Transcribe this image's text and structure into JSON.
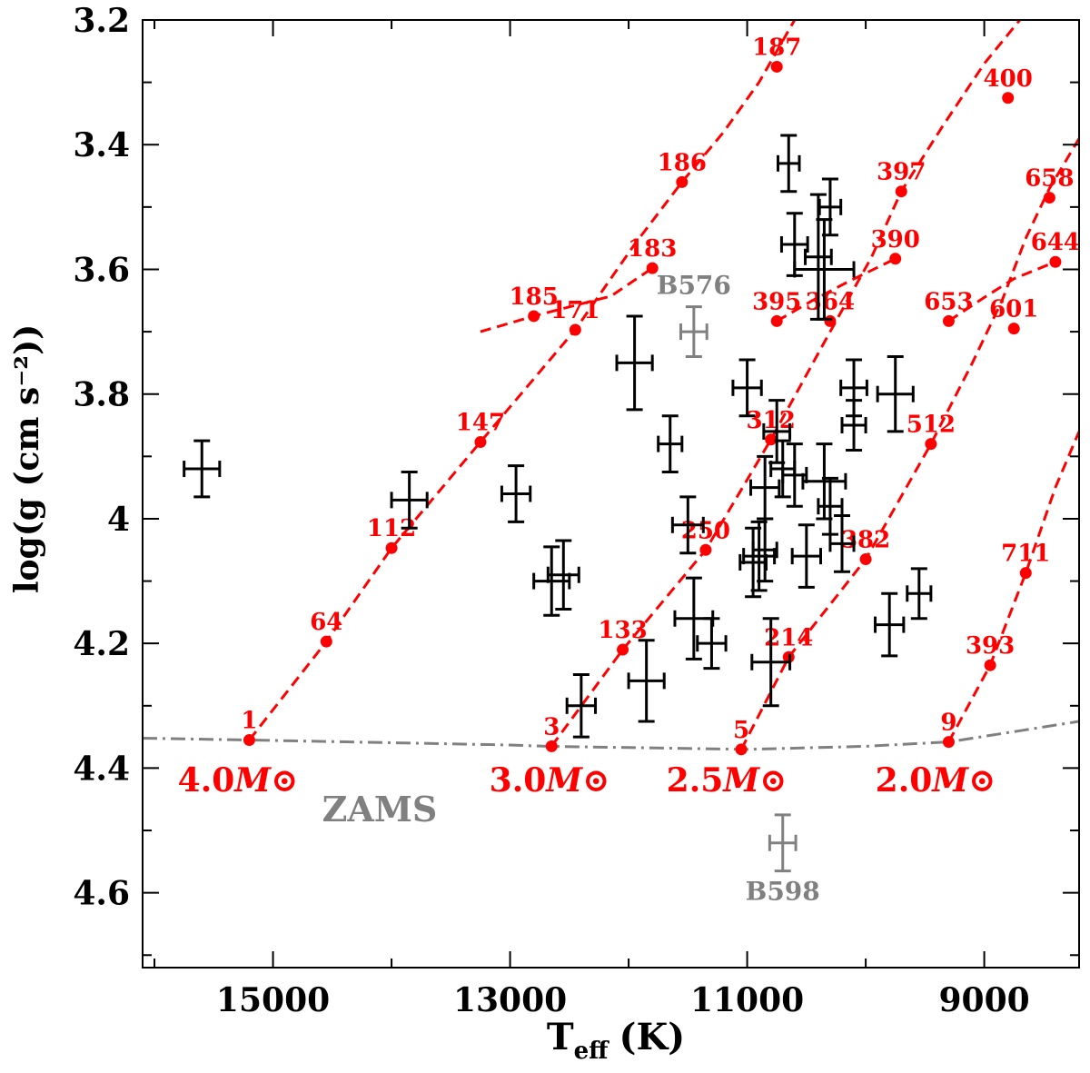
{
  "chart_data": {
    "type": "scatter",
    "xlabel_main": "T",
    "xlabel_sub": "eff",
    "xlabel_unit": "(K)",
    "ylabel": "log(g (cm s⁻²))",
    "xlim": [
      16100,
      8200
    ],
    "ylim": [
      4.72,
      3.2
    ],
    "x_ticks": [
      15000,
      13000,
      11000,
      9000
    ],
    "y_ticks": [
      "3.2",
      "3.4",
      "3.6",
      "3.8",
      "4",
      "4.2",
      "4.4",
      "4.6"
    ],
    "zams": {
      "label": "ZAMS",
      "color": "#808080",
      "points": [
        [
          16100,
          4.352
        ],
        [
          15200,
          4.355
        ],
        [
          13000,
          4.363
        ],
        [
          12700,
          4.365
        ],
        [
          11000,
          4.37
        ],
        [
          10000,
          4.365
        ],
        [
          9300,
          4.358
        ],
        [
          8700,
          4.34
        ],
        [
          8200,
          4.325
        ]
      ]
    },
    "tracks": [
      {
        "name": "4.0M⊙",
        "color": "#ff0000",
        "curve": [
          [
            15200,
            4.355
          ],
          [
            14550,
            4.197
          ],
          [
            14000,
            4.047
          ],
          [
            13250,
            3.877
          ],
          [
            12450,
            3.697
          ],
          [
            11950,
            3.56
          ],
          [
            11550,
            3.46
          ],
          [
            11200,
            3.38
          ],
          [
            10900,
            3.3
          ],
          [
            10600,
            3.2
          ]
        ],
        "hook": [
          [
            13250,
            3.7
          ],
          [
            12800,
            3.675
          ],
          [
            12150,
            3.643
          ],
          [
            11800,
            3.598
          ]
        ],
        "ages": [
          {
            "label": "1",
            "x": 15200,
            "y": 4.355
          },
          {
            "label": "64",
            "x": 14550,
            "y": 4.197
          },
          {
            "label": "112",
            "x": 14000,
            "y": 4.047
          },
          {
            "label": "147",
            "x": 13250,
            "y": 3.877
          },
          {
            "label": "171",
            "x": 12450,
            "y": 3.697
          },
          {
            "label": "185",
            "x": 12800,
            "y": 3.675
          },
          {
            "label": "183",
            "x": 11800,
            "y": 3.598
          },
          {
            "label": "186",
            "x": 11550,
            "y": 3.46
          },
          {
            "label": "187",
            "x": 10750,
            "y": 3.275
          }
        ]
      },
      {
        "name": "3.0M⊙",
        "color": "#ff0000",
        "curve": [
          [
            12650,
            4.365
          ],
          [
            12050,
            4.21
          ],
          [
            11350,
            4.05
          ],
          [
            10800,
            3.873
          ],
          [
            10300,
            3.7
          ],
          [
            9950,
            3.58
          ],
          [
            9700,
            3.475
          ],
          [
            9350,
            3.37
          ],
          [
            9000,
            3.27
          ],
          [
            8700,
            3.2
          ]
        ],
        "hook": [
          [
            10750,
            3.683
          ],
          [
            10450,
            3.65
          ],
          [
            10150,
            3.62
          ],
          [
            9750,
            3.583
          ]
        ],
        "ages": [
          {
            "label": "3",
            "x": 12650,
            "y": 4.365
          },
          {
            "label": "133",
            "x": 12050,
            "y": 4.21
          },
          {
            "label": "250",
            "x": 11350,
            "y": 4.05
          },
          {
            "label": "312",
            "x": 10800,
            "y": 3.873
          },
          {
            "label": "395",
            "x": 10750,
            "y": 3.683
          },
          {
            "label": "390",
            "x": 9750,
            "y": 3.583
          },
          {
            "label": "397",
            "x": 9700,
            "y": 3.475
          },
          {
            "label": "400",
            "x": 8800,
            "y": 3.325
          }
        ]
      },
      {
        "name": "2.5M⊙",
        "color": "#ff0000",
        "curve": [
          [
            11050,
            4.37
          ],
          [
            10650,
            4.222
          ],
          [
            10000,
            4.065
          ],
          [
            9450,
            3.88
          ],
          [
            9100,
            3.75
          ],
          [
            8850,
            3.65
          ],
          [
            8650,
            3.55
          ],
          [
            8450,
            3.47
          ],
          [
            8200,
            3.39
          ]
        ],
        "hook": [
          [
            9300,
            3.683
          ],
          [
            9000,
            3.645
          ],
          [
            8750,
            3.615
          ],
          [
            8400,
            3.588
          ]
        ],
        "ages": [
          {
            "label": "5",
            "x": 11050,
            "y": 4.37
          },
          {
            "label": "214",
            "x": 10650,
            "y": 4.222
          },
          {
            "label": "382",
            "x": 10000,
            "y": 4.065
          },
          {
            "label": "364",
            "x": 10300,
            "y": 3.683
          },
          {
            "label": "512",
            "x": 9450,
            "y": 3.88
          },
          {
            "label": "653",
            "x": 9300,
            "y": 3.683
          },
          {
            "label": "601",
            "x": 8750,
            "y": 3.695
          },
          {
            "label": "644",
            "x": 8400,
            "y": 3.588
          },
          {
            "label": "658",
            "x": 8450,
            "y": 3.485
          }
        ]
      },
      {
        "name": "2.0M⊙",
        "color": "#ff0000",
        "curve": [
          [
            9300,
            4.358
          ],
          [
            8950,
            4.235
          ],
          [
            8650,
            4.087
          ],
          [
            8400,
            3.95
          ],
          [
            8200,
            3.86
          ]
        ],
        "hook": [],
        "ages": [
          {
            "label": "9",
            "x": 9300,
            "y": 4.358
          },
          {
            "label": "393",
            "x": 8950,
            "y": 4.235
          },
          {
            "label": "711",
            "x": 8650,
            "y": 4.087
          }
        ]
      }
    ],
    "stars": [
      {
        "teff": 15600,
        "logg": 3.92,
        "dt": 150,
        "dg": 0.045,
        "color": "#000000"
      },
      {
        "teff": 13850,
        "logg": 3.97,
        "dt": 150,
        "dg": 0.045,
        "color": "#000000"
      },
      {
        "teff": 12950,
        "logg": 3.96,
        "dt": 120,
        "dg": 0.045,
        "color": "#000000"
      },
      {
        "teff": 12650,
        "logg": 4.1,
        "dt": 150,
        "dg": 0.055,
        "color": "#000000"
      },
      {
        "teff": 12550,
        "logg": 4.09,
        "dt": 130,
        "dg": 0.055,
        "color": "#000000"
      },
      {
        "teff": 12400,
        "logg": 4.3,
        "dt": 120,
        "dg": 0.05,
        "color": "#000000"
      },
      {
        "teff": 11950,
        "logg": 3.75,
        "dt": 150,
        "dg": 0.075,
        "color": "#000000"
      },
      {
        "teff": 11850,
        "logg": 4.26,
        "dt": 150,
        "dg": 0.065,
        "color": "#000000"
      },
      {
        "teff": 11650,
        "logg": 3.88,
        "dt": 100,
        "dg": 0.045,
        "color": "#000000"
      },
      {
        "teff": 11500,
        "logg": 4.01,
        "dt": 130,
        "dg": 0.045,
        "color": "#000000"
      },
      {
        "teff": 11450,
        "logg": 4.16,
        "dt": 160,
        "dg": 0.065,
        "color": "#000000"
      },
      {
        "teff": 11300,
        "logg": 4.2,
        "dt": 120,
        "dg": 0.04,
        "color": "#000000"
      },
      {
        "teff": 11000,
        "logg": 3.79,
        "dt": 120,
        "dg": 0.045,
        "color": "#000000"
      },
      {
        "teff": 10950,
        "logg": 4.07,
        "dt": 110,
        "dg": 0.055,
        "color": "#000000"
      },
      {
        "teff": 10900,
        "logg": 4.06,
        "dt": 130,
        "dg": 0.055,
        "color": "#000000"
      },
      {
        "teff": 10850,
        "logg": 4.05,
        "dt": 100,
        "dg": 0.05,
        "color": "#000000"
      },
      {
        "teff": 10850,
        "logg": 3.95,
        "dt": 120,
        "dg": 0.05,
        "color": "#000000"
      },
      {
        "teff": 10800,
        "logg": 4.23,
        "dt": 160,
        "dg": 0.07,
        "color": "#000000"
      },
      {
        "teff": 10750,
        "logg": 3.86,
        "dt": 110,
        "dg": 0.05,
        "color": "#000000"
      },
      {
        "teff": 10700,
        "logg": 3.92,
        "dt": 100,
        "dg": 0.045,
        "color": "#000000"
      },
      {
        "teff": 10650,
        "logg": 3.43,
        "dt": 90,
        "dg": 0.045,
        "color": "#000000"
      },
      {
        "teff": 10600,
        "logg": 3.56,
        "dt": 110,
        "dg": 0.05,
        "color": "#000000"
      },
      {
        "teff": 10600,
        "logg": 3.93,
        "dt": 100,
        "dg": 0.05,
        "color": "#000000"
      },
      {
        "teff": 10500,
        "logg": 4.06,
        "dt": 120,
        "dg": 0.05,
        "color": "#000000"
      },
      {
        "teff": 10400,
        "logg": 3.58,
        "dt": 110,
        "dg": 0.1,
        "color": "#000000"
      },
      {
        "teff": 10350,
        "logg": 3.6,
        "dt": 250,
        "dg": 0.08,
        "color": "#000000"
      },
      {
        "teff": 10350,
        "logg": 3.94,
        "dt": 180,
        "dg": 0.06,
        "color": "#000000"
      },
      {
        "teff": 10300,
        "logg": 3.5,
        "dt": 90,
        "dg": 0.045,
        "color": "#000000"
      },
      {
        "teff": 10300,
        "logg": 3.98,
        "dt": 100,
        "dg": 0.045,
        "color": "#000000"
      },
      {
        "teff": 10200,
        "logg": 4.04,
        "dt": 100,
        "dg": 0.045,
        "color": "#000000"
      },
      {
        "teff": 10100,
        "logg": 3.79,
        "dt": 110,
        "dg": 0.045,
        "color": "#000000"
      },
      {
        "teff": 10100,
        "logg": 3.85,
        "dt": 100,
        "dg": 0.04,
        "color": "#000000"
      },
      {
        "teff": 9800,
        "logg": 4.17,
        "dt": 120,
        "dg": 0.05,
        "color": "#000000"
      },
      {
        "teff": 9750,
        "logg": 3.8,
        "dt": 150,
        "dg": 0.06,
        "color": "#000000"
      },
      {
        "teff": 9550,
        "logg": 4.12,
        "dt": 100,
        "dg": 0.04,
        "color": "#000000"
      },
      {
        "teff": 11450,
        "logg": 3.7,
        "dt": 110,
        "dg": 0.04,
        "color": "#808080",
        "label": "B576",
        "label_pos": "above"
      },
      {
        "teff": 10700,
        "logg": 4.52,
        "dt": 110,
        "dg": 0.045,
        "color": "#808080",
        "label": "B598",
        "label_pos": "below"
      }
    ]
  }
}
